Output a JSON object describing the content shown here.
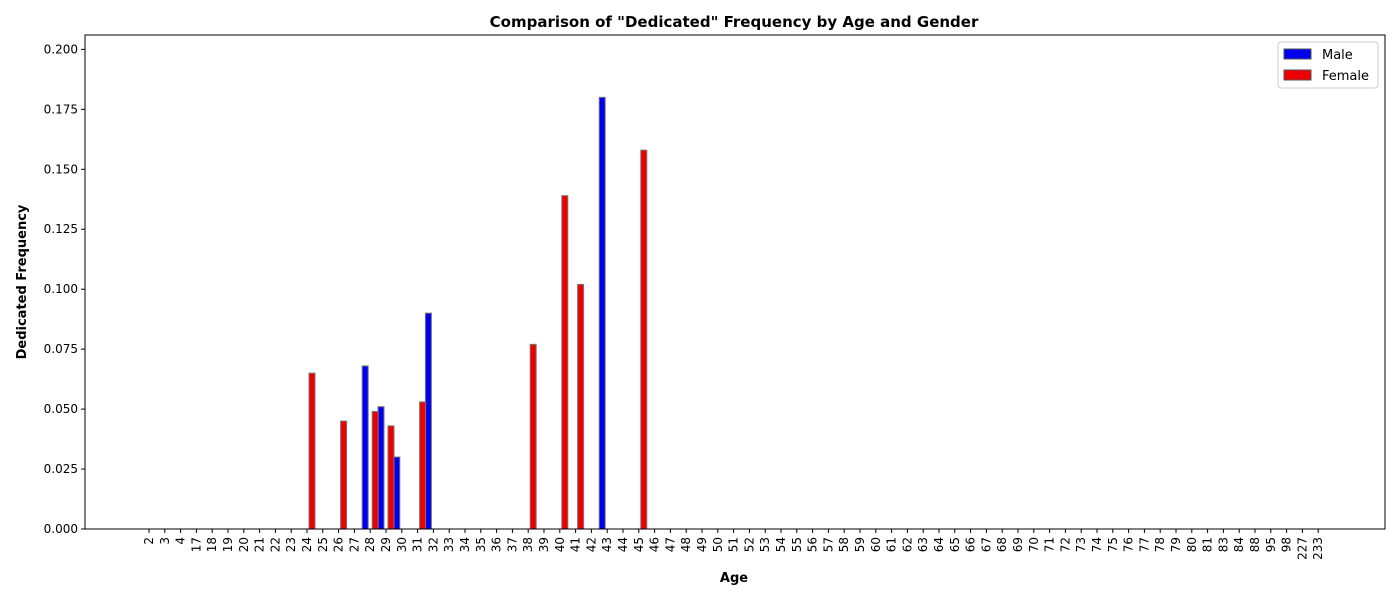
{
  "chart_data": {
    "type": "bar",
    "title": "Comparison of \"Dedicated\" Frequency by Age and Gender",
    "xlabel": "Age",
    "ylabel": "Dedicated Frequency",
    "ylim": [
      0,
      0.206
    ],
    "yticks": [
      "0.000",
      "0.025",
      "0.050",
      "0.075",
      "0.100",
      "0.125",
      "0.150",
      "0.175",
      "0.200"
    ],
    "grid": false,
    "legend_position": "top-right",
    "categories": [
      "2",
      "3",
      "4",
      "17",
      "18",
      "19",
      "20",
      "21",
      "22",
      "23",
      "24",
      "25",
      "26",
      "27",
      "28",
      "29",
      "30",
      "31",
      "32",
      "33",
      "34",
      "35",
      "36",
      "37",
      "38",
      "39",
      "40",
      "41",
      "42",
      "43",
      "44",
      "45",
      "46",
      "47",
      "48",
      "49",
      "50",
      "51",
      "52",
      "53",
      "54",
      "55",
      "56",
      "57",
      "58",
      "59",
      "60",
      "61",
      "62",
      "63",
      "64",
      "65",
      "66",
      "67",
      "68",
      "69",
      "70",
      "71",
      "72",
      "73",
      "74",
      "75",
      "76",
      "77",
      "78",
      "79",
      "80",
      "81",
      "83",
      "84",
      "88",
      "95",
      "98",
      "227",
      "233"
    ],
    "series": [
      {
        "name": "Male",
        "color": "#0000ee",
        "values": [
          0,
          0,
          0,
          0,
          0,
          0,
          0,
          0,
          0,
          0,
          0,
          0,
          0,
          0,
          0.068,
          0.051,
          0.03,
          0,
          0.09,
          0,
          0,
          0,
          0,
          0,
          0,
          0,
          0,
          0,
          0,
          0.18,
          0,
          0,
          0,
          0,
          0,
          0,
          0,
          0,
          0,
          0,
          0,
          0,
          0,
          0,
          0,
          0,
          0,
          0,
          0,
          0,
          0,
          0,
          0,
          0,
          0,
          0,
          0,
          0,
          0,
          0,
          0,
          0,
          0,
          0,
          0,
          0,
          0,
          0,
          0,
          0,
          0,
          0,
          0,
          0,
          0
        ]
      },
      {
        "name": "Female",
        "color": "#ee0000",
        "values": [
          0,
          0,
          0,
          0,
          0,
          0,
          0,
          0,
          0,
          0,
          0.065,
          0,
          0.045,
          0,
          0.049,
          0.043,
          0,
          0.053,
          0,
          0,
          0,
          0,
          0,
          0,
          0.077,
          0,
          0.139,
          0.102,
          0,
          0,
          0,
          0.158,
          0,
          0,
          0,
          0,
          0,
          0,
          0,
          0,
          0,
          0,
          0,
          0,
          0,
          0,
          0,
          0,
          0,
          0,
          0,
          0,
          0,
          0,
          0,
          0,
          0,
          0,
          0,
          0,
          0,
          0,
          0,
          0,
          0,
          0,
          0,
          0,
          0,
          0,
          0,
          0,
          0,
          0,
          0
        ]
      }
    ]
  }
}
